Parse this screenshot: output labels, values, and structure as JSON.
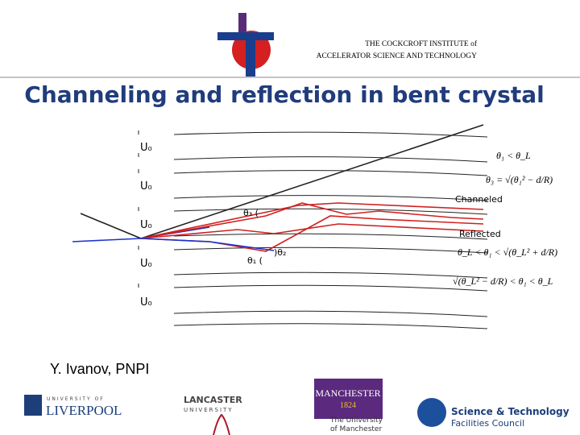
{
  "header": {
    "institute_line1": "THE COCKCROFT INSTITUTE of",
    "institute_line2": "ACCELERATOR SCIENCE AND TECHNOLOGY"
  },
  "title": "Channeling and reflection in bent crystal",
  "diagram": {
    "potential_labels": [
      "U₀",
      "U₀",
      "U₀",
      "U₀",
      "U₀"
    ],
    "channeled": "Channeled",
    "reflected": "Reflected",
    "angle3": "θ₃ (",
    "angle1": "θ₁ (",
    "angle2": ")θ₂"
  },
  "formulas": [
    "θ₁ < θ_L",
    "θ₃ = √(θ₁² − d/R)",
    "θ_L < θ₁ < √(θ_L² + d/R)",
    "√(θ_L² − d/R) < θ₁ < θ_L"
  ],
  "author": "Y. Ivanov, PNPI",
  "logos": {
    "liverpool_top": "UNIVERSITY OF",
    "liverpool": "LIVERPOOL",
    "lancaster": "LANCASTER",
    "lancaster_sub": "UNIVERSITY",
    "manchester": "MANCHESTER",
    "manchester_year": "1824",
    "manchester_sub1": "The University",
    "manchester_sub2": "of Manchester",
    "stfc1": "Science & Technology",
    "stfc2": "Facilities Council"
  }
}
